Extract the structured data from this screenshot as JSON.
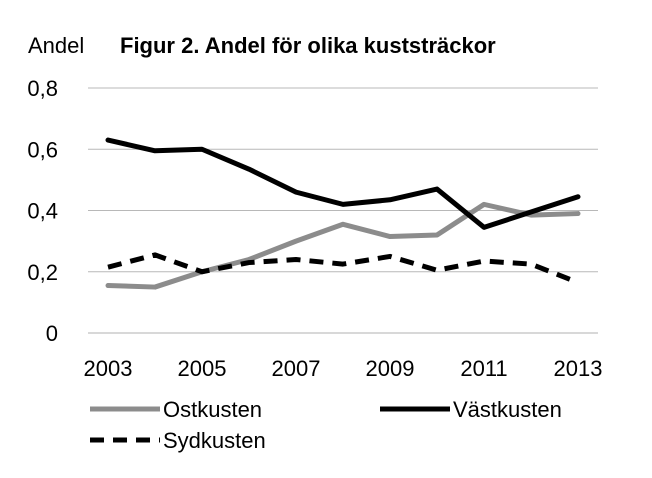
{
  "chart_data": {
    "type": "line",
    "title": "Figur 2. Andel för olika kuststräckor",
    "ylabel": "Andel",
    "xlabel": "",
    "x": [
      2003,
      2004,
      2005,
      2006,
      2007,
      2008,
      2009,
      2010,
      2011,
      2012,
      2013
    ],
    "x_tick_labels": [
      "2003",
      "2005",
      "2007",
      "2009",
      "2011",
      "2013"
    ],
    "x_tick_values": [
      2003,
      2005,
      2007,
      2009,
      2011,
      2013
    ],
    "y_tick_labels": [
      "0",
      "0,2",
      "0,4",
      "0,6",
      "0,8"
    ],
    "y_tick_values": [
      0,
      0.2,
      0.4,
      0.6,
      0.8
    ],
    "ylim": [
      0,
      0.8
    ],
    "xlim": [
      2003,
      2013
    ],
    "grid": "horizontal",
    "legend_position": "bottom",
    "series": [
      {
        "name": "Ostkusten",
        "color": "#8c8c8c",
        "dash": "solid",
        "values": [
          0.155,
          0.15,
          0.2,
          0.24,
          0.3,
          0.355,
          0.315,
          0.32,
          0.42,
          0.385,
          0.39
        ]
      },
      {
        "name": "Västkusten",
        "color": "#000000",
        "dash": "solid",
        "values": [
          0.63,
          0.595,
          0.6,
          0.535,
          0.46,
          0.42,
          0.435,
          0.47,
          0.345,
          0.395,
          0.445
        ]
      },
      {
        "name": "Sydkusten",
        "color": "#000000",
        "dash": "dashed",
        "values": [
          0.215,
          0.255,
          0.2,
          0.23,
          0.24,
          0.225,
          0.25,
          0.205,
          0.235,
          0.225,
          0.165
        ]
      }
    ]
  }
}
